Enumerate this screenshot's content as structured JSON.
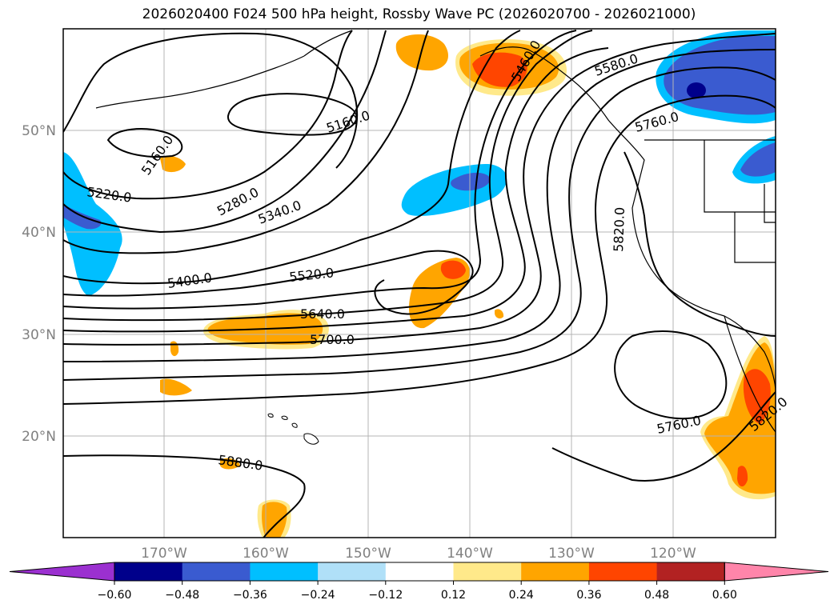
{
  "title": "2026020400 F024 500 hPa height, Rossby Wave PC (2026020700 - 2026021000)",
  "lat_labels": [
    "50°N",
    "40°N",
    "30°N",
    "20°N"
  ],
  "lon_labels": [
    "170°W",
    "160°W",
    "150°W",
    "140°W",
    "130°W",
    "120°W"
  ],
  "contour_labels": [
    "5160.0",
    "5160.0",
    "5220.0",
    "5280.0",
    "5340.0",
    "5400.0",
    "5520.0",
    "5640.0",
    "5700.0",
    "5580.0",
    "5760.0",
    "5820.0",
    "5760.0",
    "5880.0",
    "5460.0",
    "5820.0"
  ],
  "colorbar": {
    "ticks": [
      "−0.60",
      "−0.48",
      "−0.36",
      "−0.24",
      "−0.12",
      "0.12",
      "0.24",
      "0.36",
      "0.48",
      "0.60"
    ],
    "colors": [
      "#9b30d0",
      "#00008b",
      "#3a5bd0",
      "#00bfff",
      "#b0e0f8",
      "#ffffff",
      "#ffe98a",
      "#ffa500",
      "#ff4500",
      "#b22222",
      "#ff85aa"
    ]
  }
}
